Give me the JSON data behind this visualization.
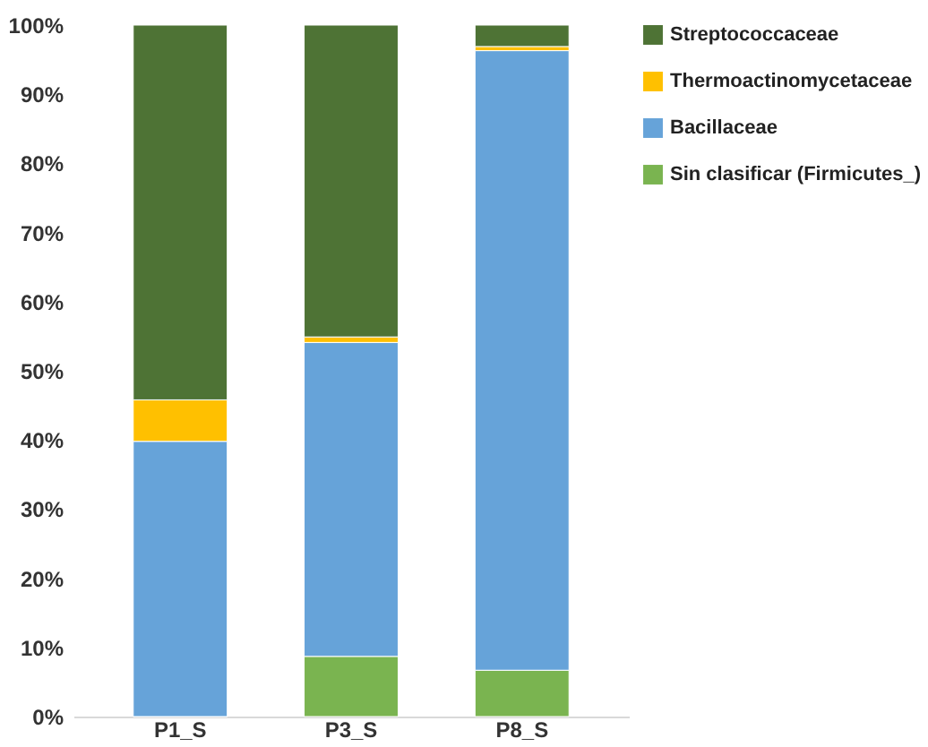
{
  "chart_data": {
    "type": "bar",
    "stacked": true,
    "categories": [
      "P1_S",
      "P3_S",
      "P8_S"
    ],
    "series": [
      {
        "name": "Sin clasificar (Firmicutes_)",
        "color": "#7ab450",
        "values": [
          0,
          8.7,
          6.7
        ]
      },
      {
        "name": "Bacillaceae",
        "color": "#66a3d9",
        "values": [
          39.8,
          45.4,
          89.6
        ]
      },
      {
        "name": "Thermoactinomycetaceae",
        "color": "#ffc000",
        "values": [
          6.0,
          0.8,
          0.6
        ]
      },
      {
        "name": "Streptococcaceae",
        "color": "#4e7335",
        "values": [
          54.2,
          45.1,
          3.1
        ]
      }
    ],
    "ylim": [
      0,
      100
    ],
    "yticks": [
      {
        "value": 0,
        "label": "0%"
      },
      {
        "value": 10,
        "label": "10%"
      },
      {
        "value": 20,
        "label": "20%"
      },
      {
        "value": 30,
        "label": "30%"
      },
      {
        "value": 40,
        "label": "40%"
      },
      {
        "value": 50,
        "label": "50%"
      },
      {
        "value": 60,
        "label": "60%"
      },
      {
        "value": 70,
        "label": "70%"
      },
      {
        "value": 80,
        "label": "80%"
      },
      {
        "value": 90,
        "label": "90%"
      },
      {
        "value": 100,
        "label": "100%"
      }
    ],
    "grid": false,
    "legend": "right"
  }
}
